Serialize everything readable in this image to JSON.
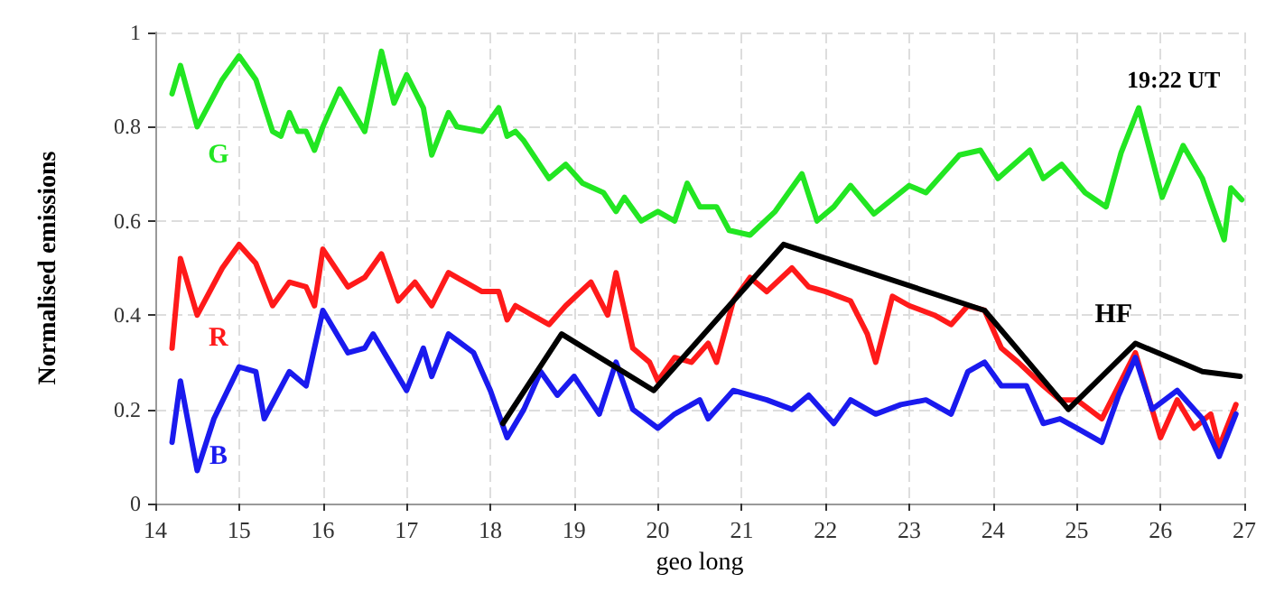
{
  "chart_data": {
    "type": "line",
    "xlabel": "geo long",
    "ylabel": "Normalised emissions",
    "xlim": [
      14,
      27
    ],
    "xticks": [
      14,
      15,
      16,
      17,
      18,
      19,
      20,
      21,
      22,
      23,
      24,
      25,
      26,
      27
    ],
    "ylim": [
      0,
      1
    ],
    "yticks": [
      0,
      0.2,
      0.4,
      0.6,
      0.8,
      1
    ],
    "grid": true,
    "marker": "none",
    "line_style": "solid",
    "annotations": [
      "G",
      "R",
      "B",
      "HF",
      "19:22 UT"
    ],
    "series": [
      {
        "color": "#22e622",
        "x": [
          14.2,
          14.3,
          14.5,
          14.8,
          15.0,
          15.2,
          15.4,
          15.5,
          15.6,
          15.7,
          15.8,
          15.9,
          16.0,
          16.2,
          16.5,
          16.7,
          16.85,
          17.0,
          17.2,
          17.3,
          17.5,
          17.6,
          17.9,
          18.1,
          18.2,
          18.3,
          18.4,
          18.7,
          18.9,
          19.1,
          19.35,
          19.5,
          19.6,
          19.8,
          20.0,
          20.2,
          20.35,
          20.5,
          20.7,
          20.85,
          21.1,
          21.4,
          21.72,
          21.9,
          22.1,
          22.3,
          22.58,
          23.0,
          23.2,
          23.6,
          23.85,
          24.06,
          24.44,
          24.6,
          24.82,
          25.1,
          25.35,
          25.53,
          25.74,
          26.02,
          26.27,
          26.5,
          26.76,
          26.84,
          26.97
        ],
        "values": [
          0.87,
          0.93,
          0.8,
          0.9,
          0.95,
          0.9,
          0.79,
          0.78,
          0.83,
          0.79,
          0.79,
          0.75,
          0.8,
          0.88,
          0.79,
          0.96,
          0.85,
          0.91,
          0.84,
          0.74,
          0.83,
          0.8,
          0.79,
          0.84,
          0.78,
          0.79,
          0.77,
          0.69,
          0.72,
          0.68,
          0.66,
          0.62,
          0.65,
          0.6,
          0.62,
          0.6,
          0.68,
          0.63,
          0.63,
          0.58,
          0.57,
          0.62,
          0.7,
          0.6,
          0.63,
          0.675,
          0.615,
          0.675,
          0.66,
          0.74,
          0.75,
          0.69,
          0.75,
          0.69,
          0.72,
          0.66,
          0.63,
          0.745,
          0.84,
          0.65,
          0.76,
          0.69,
          0.56,
          0.67,
          0.645
        ]
      },
      {
        "color": "#ff1a1a",
        "x": [
          14.2,
          14.3,
          14.5,
          14.8,
          15.0,
          15.2,
          15.4,
          15.6,
          15.8,
          15.9,
          16.0,
          16.3,
          16.5,
          16.7,
          16.9,
          17.1,
          17.3,
          17.5,
          17.7,
          17.9,
          18.1,
          18.2,
          18.3,
          18.7,
          18.9,
          19.2,
          19.4,
          19.5,
          19.7,
          19.9,
          20.0,
          20.2,
          20.4,
          20.6,
          20.7,
          20.9,
          21.1,
          21.3,
          21.6,
          21.8,
          22.0,
          22.3,
          22.5,
          22.6,
          22.8,
          23.0,
          23.3,
          23.5,
          23.7,
          23.9,
          24.1,
          24.3,
          24.6,
          24.8,
          25.0,
          25.3,
          25.5,
          25.7,
          25.9,
          26.0,
          26.2,
          26.4,
          26.6,
          26.7,
          26.9
        ],
        "values": [
          0.33,
          0.52,
          0.4,
          0.5,
          0.55,
          0.51,
          0.42,
          0.47,
          0.46,
          0.42,
          0.54,
          0.46,
          0.48,
          0.53,
          0.43,
          0.47,
          0.42,
          0.49,
          0.47,
          0.45,
          0.45,
          0.39,
          0.42,
          0.38,
          0.42,
          0.47,
          0.4,
          0.49,
          0.33,
          0.3,
          0.26,
          0.31,
          0.3,
          0.34,
          0.3,
          0.43,
          0.48,
          0.45,
          0.5,
          0.46,
          0.45,
          0.43,
          0.36,
          0.3,
          0.44,
          0.42,
          0.4,
          0.38,
          0.42,
          0.41,
          0.33,
          0.3,
          0.25,
          0.22,
          0.22,
          0.18,
          0.25,
          0.32,
          0.2,
          0.14,
          0.22,
          0.16,
          0.19,
          0.12,
          0.21
        ]
      },
      {
        "color": "#1a1aee",
        "x": [
          14.2,
          14.3,
          14.5,
          14.7,
          15.0,
          15.2,
          15.3,
          15.6,
          15.8,
          16.0,
          16.3,
          16.5,
          16.6,
          16.8,
          17.0,
          17.2,
          17.3,
          17.5,
          17.8,
          18.0,
          18.2,
          18.4,
          18.6,
          18.8,
          19.0,
          19.3,
          19.5,
          19.7,
          20.0,
          20.2,
          20.5,
          20.6,
          20.9,
          21.3,
          21.6,
          21.8,
          22.1,
          22.3,
          22.6,
          22.9,
          23.2,
          23.5,
          23.7,
          23.9,
          24.1,
          24.4,
          24.6,
          24.8,
          25.0,
          25.3,
          25.5,
          25.7,
          25.9,
          26.2,
          26.5,
          26.7,
          26.9
        ],
        "values": [
          0.13,
          0.26,
          0.07,
          0.18,
          0.29,
          0.28,
          0.18,
          0.28,
          0.25,
          0.41,
          0.32,
          0.33,
          0.36,
          0.3,
          0.24,
          0.33,
          0.27,
          0.36,
          0.32,
          0.24,
          0.14,
          0.2,
          0.28,
          0.23,
          0.27,
          0.19,
          0.3,
          0.2,
          0.16,
          0.19,
          0.22,
          0.18,
          0.24,
          0.22,
          0.2,
          0.23,
          0.17,
          0.22,
          0.19,
          0.21,
          0.22,
          0.19,
          0.28,
          0.3,
          0.25,
          0.25,
          0.17,
          0.18,
          0.16,
          0.13,
          0.23,
          0.31,
          0.2,
          0.24,
          0.18,
          0.1,
          0.19
        ]
      },
      {
        "color": "#000000",
        "x": [
          18.15,
          18.85,
          19.95,
          21.5,
          23.9,
          24.9,
          25.7,
          26.5,
          26.95
        ],
        "values": [
          0.17,
          0.36,
          0.24,
          0.55,
          0.41,
          0.2,
          0.34,
          0.28,
          0.27
        ]
      }
    ]
  }
}
